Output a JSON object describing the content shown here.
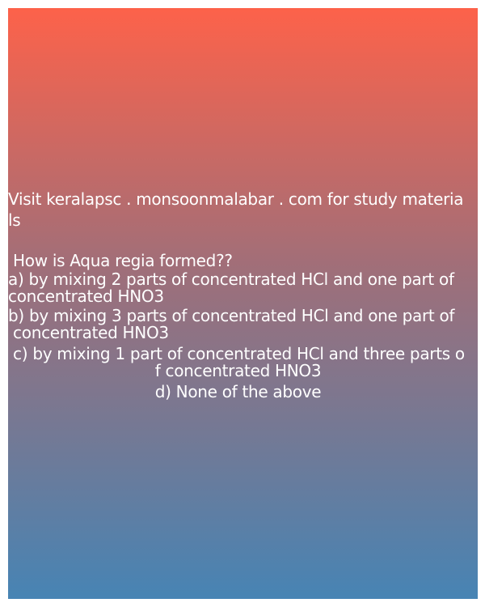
{
  "header": {
    "visit_line_1": "Visit keralapsc . monsoonmalabar . com for study materia",
    "visit_line_2": "ls"
  },
  "question": {
    "text": " How is Aqua regia formed??",
    "options": [
      {
        "line1": "a) by mixing 2 parts of concentrated HCl and one part of",
        "line2": "concentrated HNO3"
      },
      {
        "line1": "b) by mixing 3 parts of concentrated HCl and one part of",
        "line2": " concentrated HNO3"
      },
      {
        "line1": " c) by mixing 1 part of concentrated HCl and three parts o",
        "line2": "                              f concentrated HNO3"
      },
      {
        "line1": "                              d) None of the above"
      }
    ]
  }
}
